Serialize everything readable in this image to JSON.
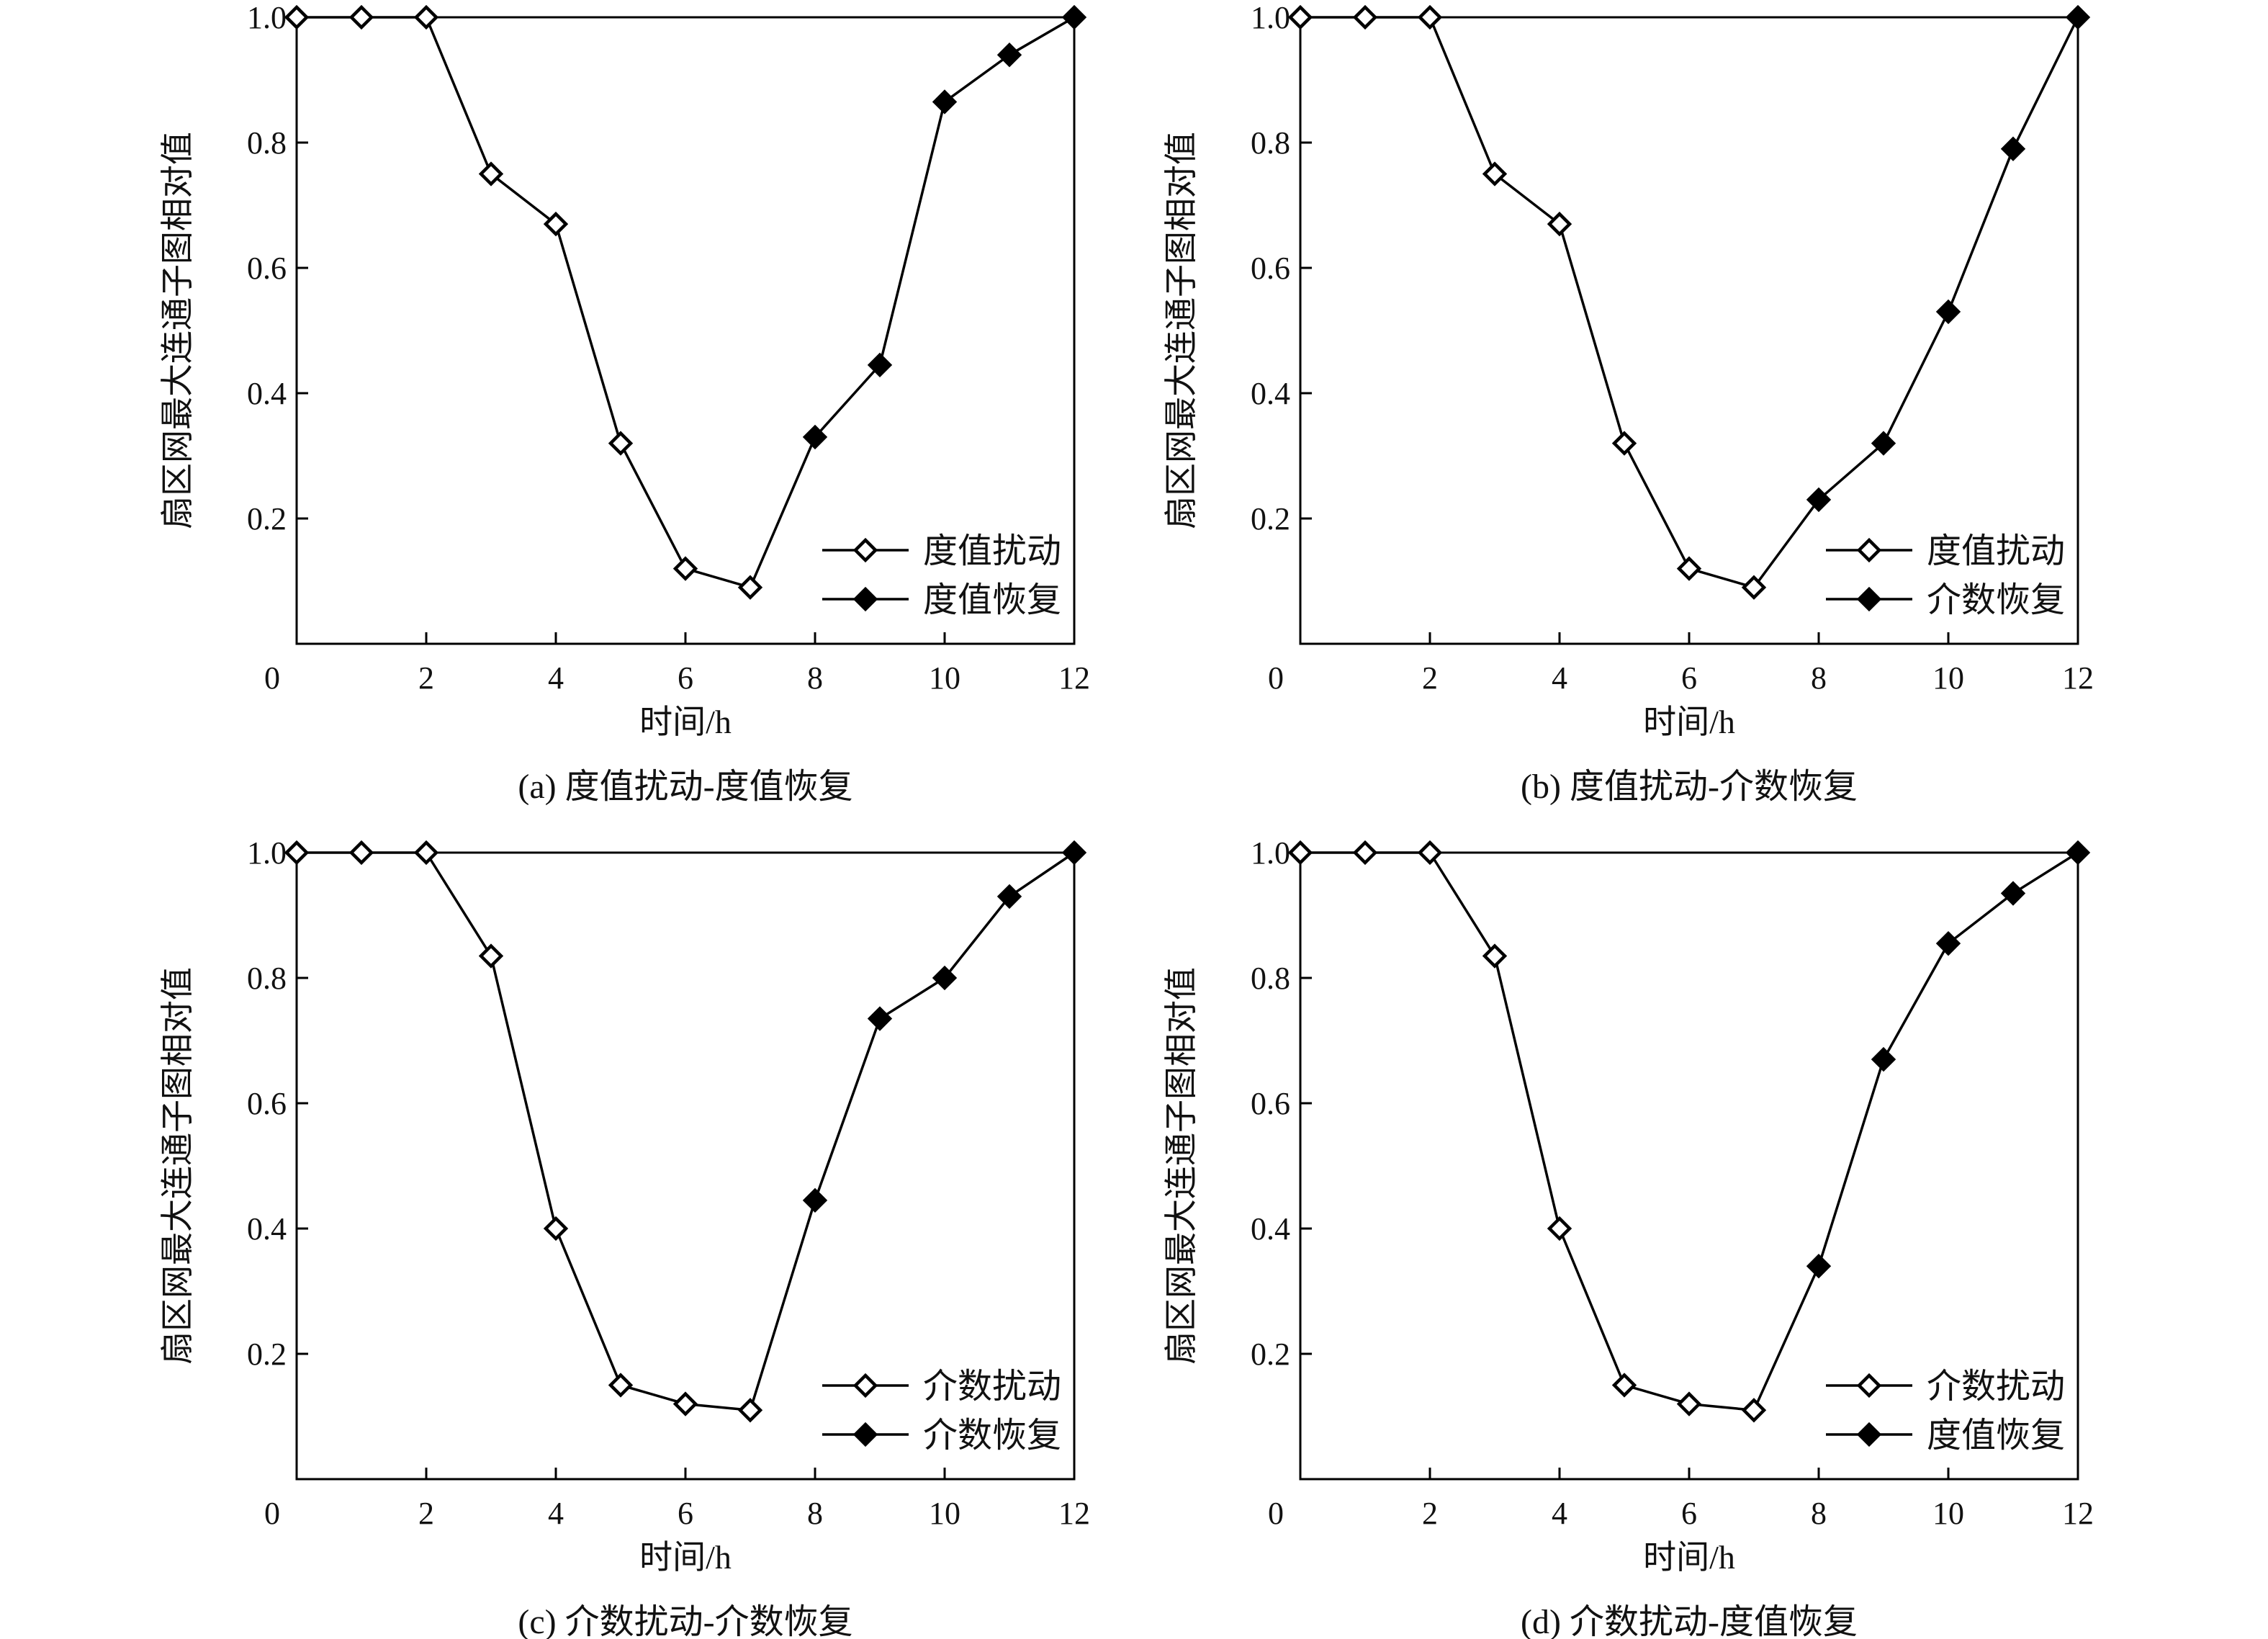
{
  "chart_data": [
    {
      "type": "line",
      "panel": "a",
      "caption": "(a) 度值扰动-度值恢复",
      "xlabel": "时间/h",
      "ylabel": "扇区网最大连通子图相对值",
      "xlim": [
        0,
        12
      ],
      "ylim": [
        0,
        1.0
      ],
      "xticks": [
        "0",
        "2",
        "4",
        "6",
        "8",
        "10",
        "12"
      ],
      "yticks": [
        "0.2",
        "0.4",
        "0.6",
        "0.8",
        "1.0"
      ],
      "legend": "bottom-right",
      "grid": false,
      "series": [
        {
          "name": "度值扰动",
          "marker": "open-diamond",
          "x": [
            0,
            1,
            2,
            3,
            4,
            5,
            6,
            7
          ],
          "values": [
            1.0,
            1.0,
            1.0,
            0.75,
            0.67,
            0.32,
            0.12,
            0.09
          ]
        },
        {
          "name": "度值恢复",
          "marker": "filled-diamond",
          "x": [
            8,
            9,
            10,
            11,
            12
          ],
          "values": [
            0.33,
            0.445,
            0.865,
            0.94,
            1.0
          ]
        }
      ]
    },
    {
      "type": "line",
      "panel": "b",
      "caption": "(b) 度值扰动-介数恢复",
      "xlabel": "时间/h",
      "ylabel": "扇区网最大连通子图相对值",
      "xlim": [
        0,
        12
      ],
      "ylim": [
        0,
        1.0
      ],
      "xticks": [
        "0",
        "2",
        "4",
        "6",
        "8",
        "10",
        "12"
      ],
      "yticks": [
        "0.2",
        "0.4",
        "0.6",
        "0.8",
        "1.0"
      ],
      "legend": "bottom-right",
      "grid": false,
      "series": [
        {
          "name": "度值扰动",
          "marker": "open-diamond",
          "x": [
            0,
            1,
            2,
            3,
            4,
            5,
            6,
            7
          ],
          "values": [
            1.0,
            1.0,
            1.0,
            0.75,
            0.67,
            0.32,
            0.12,
            0.09
          ]
        },
        {
          "name": "介数恢复",
          "marker": "filled-diamond",
          "x": [
            8,
            9,
            10,
            11,
            12
          ],
          "values": [
            0.23,
            0.32,
            0.53,
            0.79,
            1.0
          ]
        }
      ]
    },
    {
      "type": "line",
      "panel": "c",
      "caption": "(c) 介数扰动-介数恢复",
      "xlabel": "时间/h",
      "ylabel": "扇区网最大连通子图相对值",
      "xlim": [
        0,
        12
      ],
      "ylim": [
        0,
        1.0
      ],
      "xticks": [
        "0",
        "2",
        "4",
        "6",
        "8",
        "10",
        "12"
      ],
      "yticks": [
        "0.2",
        "0.4",
        "0.6",
        "0.8",
        "1.0"
      ],
      "legend": "bottom-right",
      "grid": false,
      "series": [
        {
          "name": "介数扰动",
          "marker": "open-diamond",
          "x": [
            0,
            1,
            2,
            3,
            4,
            5,
            6,
            7
          ],
          "values": [
            1.0,
            1.0,
            1.0,
            0.835,
            0.4,
            0.15,
            0.12,
            0.11
          ]
        },
        {
          "name": "介数恢复",
          "marker": "filled-diamond",
          "x": [
            8,
            9,
            10,
            11,
            12
          ],
          "values": [
            0.445,
            0.735,
            0.8,
            0.93,
            1.0
          ]
        }
      ]
    },
    {
      "type": "line",
      "panel": "d",
      "caption": "(d) 介数扰动-度值恢复",
      "xlabel": "时间/h",
      "ylabel": "扇区网最大连通子图相对值",
      "xlim": [
        0,
        12
      ],
      "ylim": [
        0,
        1.0
      ],
      "xticks": [
        "0",
        "2",
        "4",
        "6",
        "8",
        "10",
        "12"
      ],
      "yticks": [
        "0.2",
        "0.4",
        "0.6",
        "0.8",
        "1.0"
      ],
      "legend": "bottom-right",
      "grid": false,
      "series": [
        {
          "name": "介数扰动",
          "marker": "open-diamond",
          "x": [
            0,
            1,
            2,
            3,
            4,
            5,
            6,
            7
          ],
          "values": [
            1.0,
            1.0,
            1.0,
            0.835,
            0.4,
            0.15,
            0.12,
            0.11
          ]
        },
        {
          "name": "度值恢复",
          "marker": "filled-diamond",
          "x": [
            8,
            9,
            10,
            11,
            12
          ],
          "values": [
            0.34,
            0.67,
            0.855,
            0.935,
            1.0
          ]
        }
      ]
    }
  ]
}
